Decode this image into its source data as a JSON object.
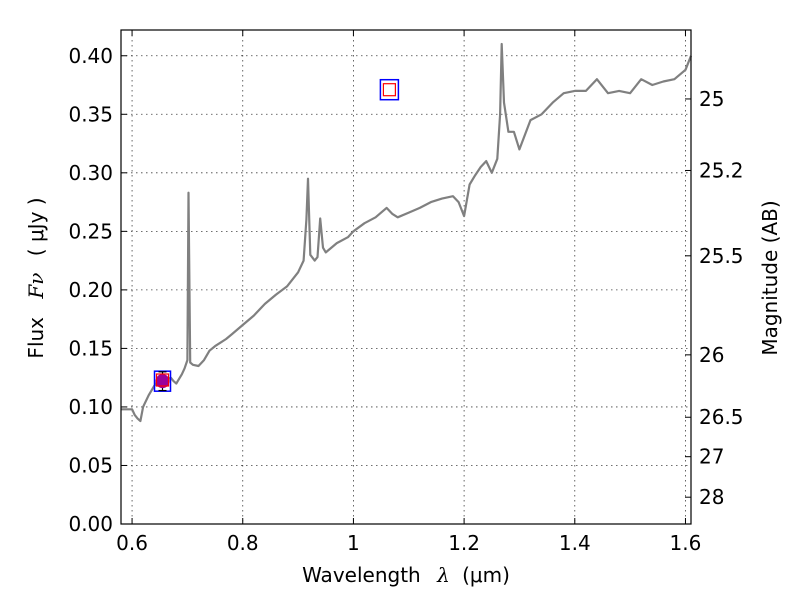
{
  "chart_data": {
    "type": "line",
    "xlabel_prefix": "Wavelength",
    "xlabel_symbol": "λ",
    "xlabel_unit": "(μm)",
    "ylabel_prefix": "Flux",
    "ylabel_symbol": "Fν",
    "ylabel_unit": "( μJy )",
    "y2label": "Magnitude (AB)",
    "xlim": [
      0.58,
      1.61
    ],
    "ylim": [
      0.0,
      0.422
    ],
    "grid": true,
    "x_ticks": [
      0.6,
      0.8,
      1.0,
      1.2,
      1.4,
      1.6
    ],
    "x_tick_labels": [
      "0.6",
      "0.8",
      "1",
      "1.2",
      "1.4",
      "1.6"
    ],
    "y_ticks": [
      0.0,
      0.05,
      0.1,
      0.15,
      0.2,
      0.25,
      0.3,
      0.35,
      0.4
    ],
    "y_tick_labels": [
      "0.00",
      "0.05",
      "0.10",
      "0.15",
      "0.20",
      "0.25",
      "0.30",
      "0.35",
      "0.40"
    ],
    "y2_ticks": [
      {
        "label": "25",
        "flux": 0.3631
      },
      {
        "label": "25.2",
        "flux": 0.302
      },
      {
        "label": "25.5",
        "flux": 0.2291
      },
      {
        "label": "26",
        "flux": 0.1445
      },
      {
        "label": "26.5",
        "flux": 0.0912
      },
      {
        "label": "27",
        "flux": 0.0575
      },
      {
        "label": "28",
        "flux": 0.0229
      }
    ],
    "colors": {
      "spectrum": "#808080",
      "observed": "#0000ff",
      "model": "#ff0000",
      "observed_point": "#9b009b"
    },
    "series": [
      {
        "x": [
          0.58,
          0.6,
          0.605,
          0.61,
          0.615,
          0.62,
          0.63,
          0.64,
          0.65,
          0.66,
          0.67,
          0.675,
          0.68,
          0.69,
          0.695,
          0.7,
          0.702,
          0.705,
          0.71,
          0.72,
          0.73,
          0.74,
          0.75,
          0.76,
          0.77,
          0.78,
          0.8,
          0.82,
          0.84,
          0.86,
          0.88,
          0.9,
          0.91,
          0.915,
          0.918,
          0.922,
          0.93,
          0.935,
          0.94,
          0.945,
          0.95,
          0.97,
          0.99,
          1.0,
          1.02,
          1.04,
          1.06,
          1.07,
          1.08,
          1.1,
          1.12,
          1.14,
          1.16,
          1.18,
          1.19,
          1.2,
          1.21,
          1.22,
          1.23,
          1.24,
          1.25,
          1.26,
          1.265,
          1.268,
          1.272,
          1.28,
          1.29,
          1.3,
          1.32,
          1.34,
          1.36,
          1.38,
          1.4,
          1.42,
          1.44,
          1.46,
          1.48,
          1.5,
          1.52,
          1.54,
          1.56,
          1.58,
          1.6,
          1.61
        ],
        "y": [
          0.098,
          0.098,
          0.093,
          0.09,
          0.088,
          0.1,
          0.11,
          0.118,
          0.124,
          0.123,
          0.125,
          0.122,
          0.12,
          0.128,
          0.133,
          0.14,
          0.283,
          0.138,
          0.136,
          0.135,
          0.14,
          0.148,
          0.152,
          0.155,
          0.158,
          0.162,
          0.17,
          0.178,
          0.188,
          0.196,
          0.203,
          0.215,
          0.225,
          0.26,
          0.295,
          0.23,
          0.225,
          0.228,
          0.261,
          0.236,
          0.232,
          0.24,
          0.245,
          0.25,
          0.257,
          0.262,
          0.27,
          0.265,
          0.262,
          0.266,
          0.27,
          0.275,
          0.278,
          0.28,
          0.275,
          0.263,
          0.29,
          0.298,
          0.305,
          0.31,
          0.3,
          0.312,
          0.35,
          0.41,
          0.36,
          0.335,
          0.335,
          0.32,
          0.345,
          0.35,
          0.36,
          0.368,
          0.37,
          0.37,
          0.38,
          0.368,
          0.37,
          0.368,
          0.38,
          0.375,
          0.378,
          0.38,
          0.388,
          0.4
        ]
      }
    ],
    "observed_points": [
      {
        "x": 0.655,
        "y": 0.122,
        "yerr": 0.008
      }
    ],
    "model_points": [
      {
        "x": 0.655,
        "y": 0.123
      },
      {
        "x": 1.065,
        "y": 0.371
      }
    ]
  }
}
